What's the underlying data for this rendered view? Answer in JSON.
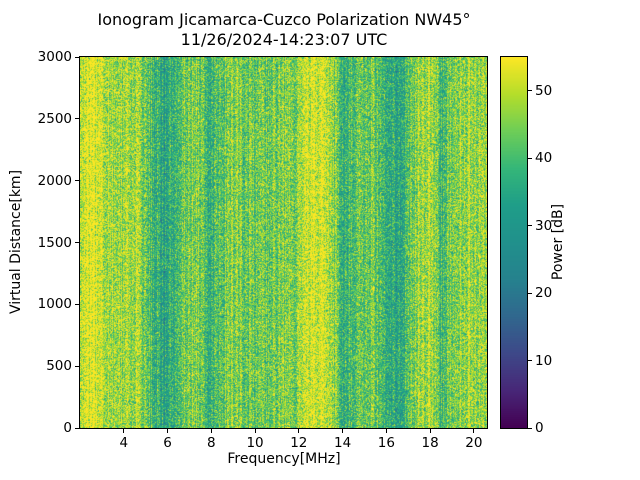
{
  "chart_data": {
    "type": "heatmap",
    "title": "Ionogram Jicamarca-Cuzco Polarization NW45°",
    "subtitle": "11/26/2024-14:23:07 UTC",
    "xlabel": "Frequency[MHz]",
    "ylabel": "Virtual Distance[km]",
    "colorbar_label": "Power [dB]",
    "colormap": "viridis",
    "grid": false,
    "xlim": [
      2.0,
      20.6
    ],
    "ylim": [
      0,
      3000
    ],
    "clim": [
      0,
      55
    ],
    "xticks": [
      4,
      6,
      8,
      10,
      12,
      14,
      16,
      18,
      20
    ],
    "yticks": [
      0,
      500,
      1000,
      1500,
      2000,
      2500,
      3000
    ],
    "colorbar_ticks": [
      0,
      10,
      20,
      30,
      40,
      50
    ],
    "power_profile": {
      "freq_mhz": [
        2.0,
        2.6,
        3.0,
        3.4,
        4.0,
        4.6,
        5.0,
        5.5,
        5.9,
        6.3,
        6.8,
        7.3,
        7.7,
        8.0,
        8.4,
        9.0,
        9.6,
        10.2,
        10.7,
        11.2,
        11.8,
        12.3,
        12.6,
        13.3,
        13.7,
        14.0,
        14.4,
        15.0,
        15.5,
        16.0,
        16.5,
        17.0,
        17.4,
        17.8,
        18.2,
        18.5,
        18.9,
        19.3,
        19.7,
        20.2,
        20.6
      ],
      "mean_db": [
        54,
        54,
        53,
        48,
        47,
        49,
        44,
        37,
        33,
        36,
        44,
        46,
        40,
        36,
        43,
        45,
        44,
        42,
        43,
        45,
        46,
        50,
        54,
        53,
        44,
        36,
        40,
        44,
        43,
        36,
        34,
        40,
        47,
        50,
        46,
        38,
        44,
        47,
        49,
        47,
        48
      ]
    },
    "noise_half_range_db": 15,
    "column_jitter_db": 5,
    "seed": 7
  }
}
